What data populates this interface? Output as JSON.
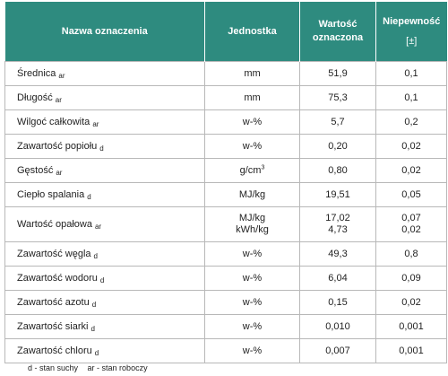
{
  "header": {
    "col_name": "Nazwa oznaczenia",
    "col_unit": "Jednostka",
    "col_value": "Wartość oznaczona",
    "col_uncertainty": "Niepewność",
    "col_uncertainty_unit": "[±]"
  },
  "rows": [
    {
      "name": "Średnica",
      "index": "ar",
      "unit": "mm",
      "value": "51,9",
      "uncertainty": "0,1"
    },
    {
      "name": "Długość",
      "index": "ar",
      "unit": "mm",
      "value": "75,3",
      "uncertainty": "0,1"
    },
    {
      "name": "Wilgoć całkowita",
      "index": "ar",
      "unit": "w-%",
      "value": "5,7",
      "uncertainty": "0,2"
    },
    {
      "name": "Zawartość popiołu",
      "index": "d",
      "unit": "w-%",
      "value": "0,20",
      "uncertainty": "0,02"
    },
    {
      "name": "Gęstość",
      "index": "ar",
      "unit": "g/cm",
      "unit_sup": "3",
      "value": "0,80",
      "uncertainty": "0,02"
    },
    {
      "name": "Ciepło spalania",
      "index": "d",
      "unit": "MJ/kg",
      "value": "19,51",
      "uncertainty": "0,05"
    },
    {
      "name": "Wartość opałowa",
      "index": "ar",
      "unit": "MJ/kg",
      "unit2": "kWh/kg",
      "value": "17,02",
      "value2": "4,73",
      "uncertainty": "0,07",
      "uncertainty2": "0,02"
    },
    {
      "name": "Zawartość węgla",
      "index": "d",
      "unit": "w-%",
      "value": "49,3",
      "uncertainty": "0,8"
    },
    {
      "name": "Zawartość wodoru",
      "index": "d",
      "unit": "w-%",
      "value": "6,04",
      "uncertainty": "0,09"
    },
    {
      "name": "Zawartość azotu",
      "index": "d",
      "unit": "w-%",
      "value": "0,15",
      "uncertainty": "0,02"
    },
    {
      "name": "Zawartość siarki",
      "index": "d",
      "unit": "w-%",
      "value": "0,010",
      "uncertainty": "0,001"
    },
    {
      "name": "Zawartość chloru",
      "index": "d",
      "unit": "w-%",
      "value": "0,007",
      "uncertainty": "0,001"
    }
  ],
  "footnote": {
    "dry": "d - stan suchy",
    "working": "ar - stan roboczy"
  },
  "colors": {
    "header_bg": "#2e8b7f",
    "header_text": "#ffffff",
    "border": "#b8b8b8"
  }
}
